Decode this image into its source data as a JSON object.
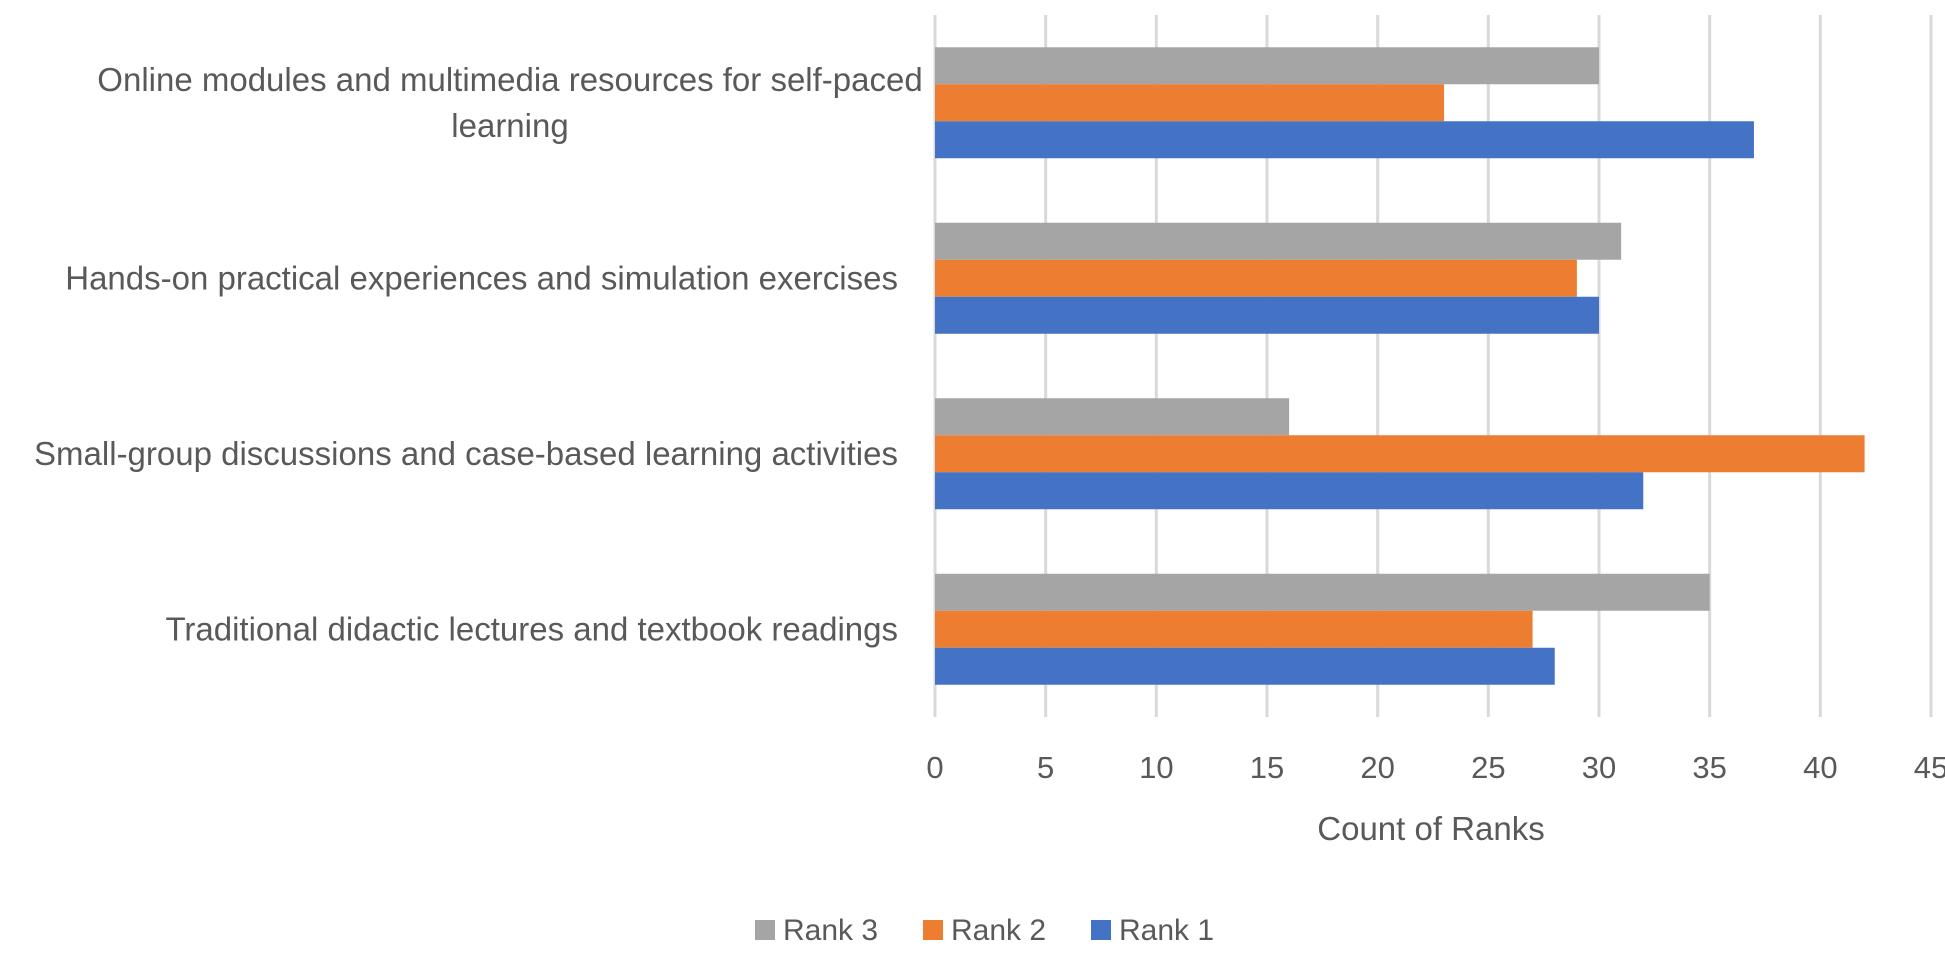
{
  "chart_data": {
    "type": "bar",
    "orientation": "horizontal",
    "categories": [
      "Traditional didactic lectures and textbook readings",
      "Small-group discussions and case-based learning activities",
      "Hands-on practical experiences and simulation exercises",
      "Online modules and multimedia resources for self-paced learning"
    ],
    "category_label_lines": [
      [
        "Traditional didactic lectures and textbook readings"
      ],
      [
        "Small-group discussions and case-based learning activities"
      ],
      [
        "Hands-on practical experiences and simulation exercises"
      ],
      [
        "Online modules and multimedia resources for self-paced",
        "learning"
      ]
    ],
    "series": [
      {
        "name": "Rank 1",
        "color": "#4472C4",
        "values": [
          28,
          32,
          30,
          37
        ]
      },
      {
        "name": "Rank 2",
        "color": "#ED7D31",
        "values": [
          27,
          42,
          29,
          23
        ]
      },
      {
        "name": "Rank 3",
        "color": "#A5A5A5",
        "values": [
          35,
          16,
          31,
          30
        ]
      }
    ],
    "legend_order": [
      "Rank 3",
      "Rank 2",
      "Rank 1"
    ],
    "xlabel": "Count of Ranks",
    "ylabel": "",
    "xlim": [
      0,
      45
    ],
    "xticks": [
      0,
      5,
      10,
      15,
      20,
      25,
      30,
      35,
      40,
      45
    ],
    "grid": "vertical",
    "legend_position": "bottom"
  }
}
